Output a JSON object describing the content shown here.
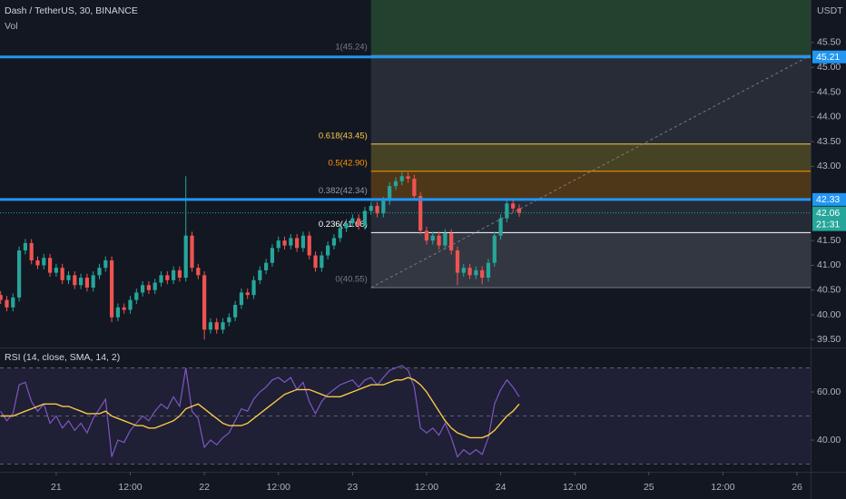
{
  "chart_data": {
    "type": "candlestick",
    "title": "Dash / TetherUS, 30, BINANCE",
    "volume_label": "Vol",
    "currency": "USDT",
    "up_color": "#26a69a",
    "down_color": "#ef5350",
    "x": [
      -9,
      -8,
      -7,
      -6,
      -5,
      -4,
      -3,
      -2,
      -1,
      0,
      1,
      2,
      3,
      4,
      5,
      6,
      7,
      8,
      9,
      10,
      11,
      12,
      13,
      14,
      15,
      16,
      17,
      18,
      19,
      20,
      21,
      22,
      23,
      24,
      25,
      26,
      27,
      28,
      29,
      30,
      31,
      32,
      33,
      34,
      35,
      36,
      37,
      38,
      39,
      40,
      41,
      42,
      43,
      44,
      45,
      46,
      47,
      48,
      49,
      50,
      51,
      52,
      53,
      54,
      55,
      56,
      57,
      58,
      59,
      60,
      61,
      62,
      63,
      64,
      65,
      66,
      67,
      68,
      69,
      70,
      71,
      72,
      73,
      74,
      75
    ],
    "open": [
      40.4,
      40.3,
      40.15,
      40.35,
      41.3,
      41.45,
      41.1,
      41.0,
      41.15,
      40.85,
      40.95,
      40.7,
      40.8,
      40.6,
      40.75,
      40.55,
      40.8,
      40.95,
      41.1,
      39.95,
      40.15,
      40.1,
      40.3,
      40.45,
      40.6,
      40.5,
      40.65,
      40.8,
      40.7,
      40.9,
      40.75,
      41.6,
      40.95,
      40.8,
      39.7,
      39.85,
      39.7,
      39.85,
      39.95,
      40.2,
      40.45,
      40.4,
      40.7,
      40.9,
      41.05,
      41.35,
      41.5,
      41.4,
      41.55,
      41.35,
      41.6,
      41.2,
      40.95,
      41.2,
      41.4,
      41.55,
      41.75,
      41.85,
      41.95,
      41.8,
      42.1,
      42.2,
      42.05,
      42.3,
      42.6,
      42.7,
      42.8,
      42.75,
      42.4,
      41.7,
      41.5,
      41.6,
      41.4,
      41.65,
      41.3,
      40.85,
      40.95,
      40.8,
      40.9,
      40.75,
      41.05,
      41.6,
      41.95,
      42.25,
      42.15
    ],
    "high": [
      40.48,
      40.38,
      40.43,
      41.38,
      41.53,
      41.53,
      41.18,
      41.23,
      41.23,
      41.03,
      41.03,
      40.88,
      40.88,
      40.83,
      40.83,
      40.88,
      41.03,
      41.18,
      41.18,
      40.23,
      40.23,
      40.38,
      40.53,
      40.68,
      40.68,
      40.73,
      40.88,
      40.88,
      40.98,
      40.98,
      42.8,
      41.68,
      41.03,
      40.88,
      39.93,
      39.93,
      39.93,
      40.03,
      40.28,
      40.53,
      40.53,
      40.78,
      40.98,
      41.13,
      41.43,
      41.58,
      41.58,
      41.63,
      41.63,
      41.68,
      41.68,
      41.28,
      41.28,
      41.48,
      41.63,
      41.83,
      41.93,
      42.03,
      42.03,
      42.18,
      42.28,
      42.28,
      42.38,
      42.68,
      42.78,
      42.88,
      42.88,
      42.83,
      42.48,
      41.78,
      41.68,
      41.68,
      41.73,
      41.73,
      41.38,
      41.03,
      41.03,
      40.98,
      40.98,
      41.13,
      41.68,
      42.03,
      42.33,
      42.33,
      42.23
    ],
    "low": [
      40.22,
      40.07,
      40.07,
      40.27,
      41.22,
      41.02,
      40.92,
      40.92,
      40.77,
      40.77,
      40.62,
      40.62,
      40.52,
      40.52,
      40.47,
      40.47,
      40.72,
      40.87,
      39.85,
      39.87,
      40.02,
      40.02,
      40.22,
      40.37,
      40.42,
      40.42,
      40.57,
      40.62,
      40.62,
      40.67,
      40.67,
      40.87,
      40.72,
      39.5,
      39.62,
      39.62,
      39.62,
      39.77,
      39.87,
      40.12,
      40.32,
      40.32,
      40.62,
      40.82,
      40.97,
      41.27,
      41.32,
      41.32,
      41.27,
      41.27,
      41.12,
      40.87,
      40.87,
      41.12,
      41.32,
      41.47,
      41.67,
      41.77,
      41.72,
      41.72,
      42.02,
      41.97,
      41.97,
      42.22,
      42.52,
      42.62,
      42.67,
      42.32,
      41.62,
      41.42,
      41.42,
      41.32,
      41.32,
      41.22,
      40.6,
      40.77,
      40.72,
      40.72,
      40.62,
      40.67,
      40.97,
      41.52,
      41.87,
      42.07,
      41.98
    ],
    "close": [
      40.3,
      40.15,
      40.35,
      41.3,
      41.45,
      41.1,
      41.0,
      41.15,
      40.85,
      40.95,
      40.7,
      40.8,
      40.6,
      40.75,
      40.55,
      40.8,
      40.95,
      41.1,
      39.95,
      40.15,
      40.1,
      40.3,
      40.45,
      40.6,
      40.5,
      40.65,
      40.8,
      40.7,
      40.9,
      40.75,
      41.6,
      40.95,
      40.8,
      39.7,
      39.85,
      39.7,
      39.85,
      39.95,
      40.2,
      40.45,
      40.4,
      40.7,
      40.9,
      41.05,
      41.35,
      41.5,
      41.4,
      41.55,
      41.35,
      41.6,
      41.2,
      40.95,
      41.2,
      41.4,
      41.55,
      41.75,
      41.85,
      41.95,
      41.8,
      42.1,
      42.2,
      42.05,
      42.3,
      42.6,
      42.7,
      42.8,
      42.75,
      42.4,
      41.7,
      41.5,
      41.6,
      41.4,
      41.65,
      41.3,
      40.85,
      40.95,
      40.8,
      40.9,
      40.75,
      41.05,
      41.6,
      41.95,
      42.25,
      42.15,
      42.06
    ],
    "xlim": [
      -9.1,
      122.2
    ],
    "xticks": [
      {
        "value": 0,
        "label": "21"
      },
      {
        "value": 12,
        "label": "12:00"
      },
      {
        "value": 24,
        "label": "22"
      },
      {
        "value": 36,
        "label": "12:00"
      },
      {
        "value": 48,
        "label": "23"
      },
      {
        "value": 60,
        "label": "12:00"
      },
      {
        "value": 72,
        "label": "24"
      },
      {
        "value": 84,
        "label": "12:00"
      },
      {
        "value": 96,
        "label": "25"
      },
      {
        "value": 108,
        "label": "12:00"
      },
      {
        "value": 120,
        "label": "26"
      }
    ],
    "ylim": [
      39.34,
      46.36
    ],
    "yticks": [
      {
        "value": 45.5,
        "label": "45.50"
      },
      {
        "value": 45,
        "label": "45.00"
      },
      {
        "value": 44.5,
        "label": "44.50"
      },
      {
        "value": 44,
        "label": "44.00"
      },
      {
        "value": 43.5,
        "label": "43.50"
      },
      {
        "value": 43,
        "label": "43.00"
      },
      {
        "value": 41.5,
        "label": "41.50"
      },
      {
        "value": 41,
        "label": "41.00"
      },
      {
        "value": 40.5,
        "label": "40.50"
      },
      {
        "value": 40,
        "label": "40.00"
      },
      {
        "value": 39.5,
        "label": "39.50"
      }
    ],
    "grid": false,
    "hlines": [
      {
        "value": 45.21,
        "label": "45.21",
        "color": "#2196f3"
      },
      {
        "value": 42.33,
        "label": "42.33",
        "color": "#2196f3"
      }
    ],
    "price_marker": {
      "value": 42.06,
      "label": "42.06",
      "countdown": "21:31",
      "color": "#26a69a"
    },
    "fib": {
      "x_range": [
        51,
        122.2
      ],
      "top_fill": "rgba(76,175,80,0.28)",
      "trend_color": "#787b86",
      "levels": [
        {
          "label": "1(45.24)",
          "value": 45.24,
          "color": "#787b86",
          "fill": "rgba(120,123,134,0.22)"
        },
        {
          "label": "0.618(43.45)",
          "value": 43.45,
          "color": "#f7c948",
          "fill": "rgba(181,160,40,0.32)"
        },
        {
          "label": "0.5(42.90)",
          "value": 42.9,
          "color": "#ff9800",
          "fill": "rgba(255,152,0,0.25)"
        },
        {
          "label": "0.382(42.34)",
          "value": 42.34,
          "color": "#9598a1",
          "fill": "rgba(100,120,130,0.22)"
        },
        {
          "label": "0.236(41.66)",
          "value": 41.66,
          "color": "#ffffff",
          "fill": "rgba(120,123,134,0.32)"
        },
        {
          "label": "0(40.55)",
          "value": 40.55,
          "color": "#787b86"
        }
      ]
    },
    "rsi": {
      "title": "RSI (14, close, SMA, 14, 2)",
      "color": "#7e57c2",
      "values": [
        52,
        48,
        51,
        63,
        64,
        56,
        52,
        55,
        47,
        50,
        45,
        48,
        44,
        47,
        43,
        49,
        53,
        57,
        33,
        40,
        39,
        44,
        47,
        50,
        48,
        52,
        55,
        53,
        58,
        54,
        70,
        52,
        49,
        37,
        40,
        38,
        41,
        43,
        48,
        53,
        52,
        57,
        60,
        62,
        65,
        66,
        64,
        66,
        61,
        64,
        56,
        51,
        56,
        59,
        61,
        63,
        64,
        65,
        62,
        65,
        66,
        63,
        66,
        69,
        70,
        71,
        69,
        62,
        45,
        43,
        45,
        42,
        47,
        41,
        33,
        36,
        34,
        36,
        34,
        41,
        55,
        61,
        65,
        62,
        58
      ],
      "sma": {
        "color": "#f7c948",
        "values": [
          50,
          50,
          50,
          51,
          52,
          53,
          54,
          55,
          55,
          55,
          54,
          54,
          53,
          52,
          51,
          51,
          51,
          52,
          50,
          49,
          48,
          47,
          46,
          46,
          45,
          45,
          46,
          47,
          48,
          50,
          53,
          54,
          55,
          53,
          51,
          49,
          47,
          46,
          46,
          46,
          47,
          49,
          51,
          53,
          55,
          57,
          59,
          60,
          61,
          61,
          61,
          60,
          59,
          58,
          58,
          58,
          59,
          60,
          61,
          62,
          63,
          63,
          63,
          64,
          65,
          65,
          66,
          65,
          63,
          60,
          56,
          52,
          48,
          45,
          43,
          42,
          41,
          41,
          41,
          42,
          44,
          47,
          50,
          52,
          55
        ]
      },
      "ylim": [
        26.8,
        78.5
      ],
      "yticks": [
        {
          "value": 60,
          "label": "60.00"
        },
        {
          "value": 40,
          "label": "40.00"
        }
      ],
      "bands": [
        70,
        50,
        30
      ],
      "band_fill": "rgba(126,87,194,0.12)"
    }
  }
}
